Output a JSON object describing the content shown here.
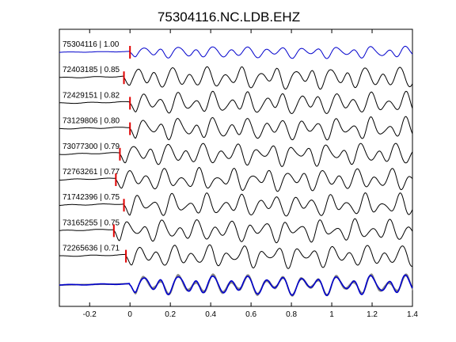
{
  "chart_data": {
    "type": "line",
    "title": "75304116.NC.LDB.EHZ",
    "xlabel": "",
    "ylabel": "",
    "xlim": [
      -0.35,
      1.4
    ],
    "xticks": [
      "-0.2",
      "0",
      "0.2",
      "0.4",
      "0.6",
      "0.8",
      "1",
      "1.2",
      "1.4"
    ],
    "xtick_values": [
      -0.2,
      0,
      0.2,
      0.4,
      0.6,
      0.8,
      1.0,
      1.2,
      1.4
    ],
    "grid": false,
    "legend": "none",
    "colors": {
      "master": "#0000cc",
      "trace": "#000000",
      "stack": "#808080",
      "pick": "#e00000"
    },
    "series": [
      {
        "name": "75304116 | 1.00",
        "pick_time": 0.0,
        "seed": 1,
        "color": "#0000cc",
        "amp": 0.55
      },
      {
        "name": "72403185 | 0.85",
        "pick_time": -0.03,
        "seed": 2,
        "color": "#000000",
        "amp": 1.0
      },
      {
        "name": "72429151 | 0.82",
        "pick_time": 0.0,
        "seed": 3,
        "color": "#000000",
        "amp": 1.0
      },
      {
        "name": "73129806 | 0.80",
        "pick_time": 0.0,
        "seed": 4,
        "color": "#000000",
        "amp": 1.0
      },
      {
        "name": "73077300 | 0.79",
        "pick_time": -0.05,
        "seed": 5,
        "color": "#000000",
        "amp": 1.0
      },
      {
        "name": "72763261 | 0.77",
        "pick_time": -0.07,
        "seed": 6,
        "color": "#000000",
        "amp": 1.0
      },
      {
        "name": "71742396 | 0.75",
        "pick_time": -0.03,
        "seed": 7,
        "color": "#000000",
        "amp": 1.0
      },
      {
        "name": "73165255 | 0.75",
        "pick_time": -0.08,
        "seed": 8,
        "color": "#000000",
        "amp": 1.0
      },
      {
        "name": "72265636 | 0.71",
        "pick_time": -0.02,
        "seed": 9,
        "color": "#000000",
        "amp": 1.0
      }
    ]
  }
}
